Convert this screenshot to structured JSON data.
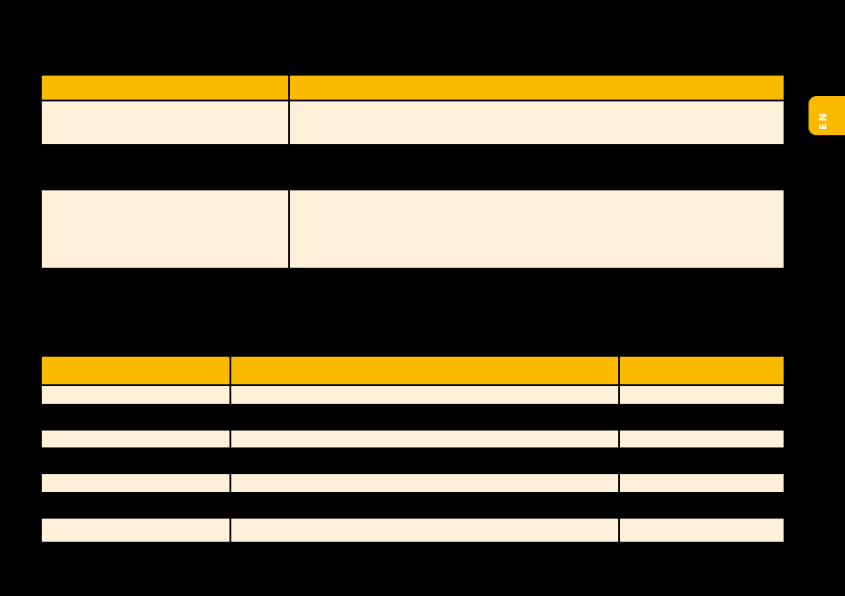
{
  "language_tab": {
    "label": "EN"
  },
  "colors": {
    "header": "#fbba00",
    "cell": "#fff0d9",
    "background": "#000000"
  }
}
